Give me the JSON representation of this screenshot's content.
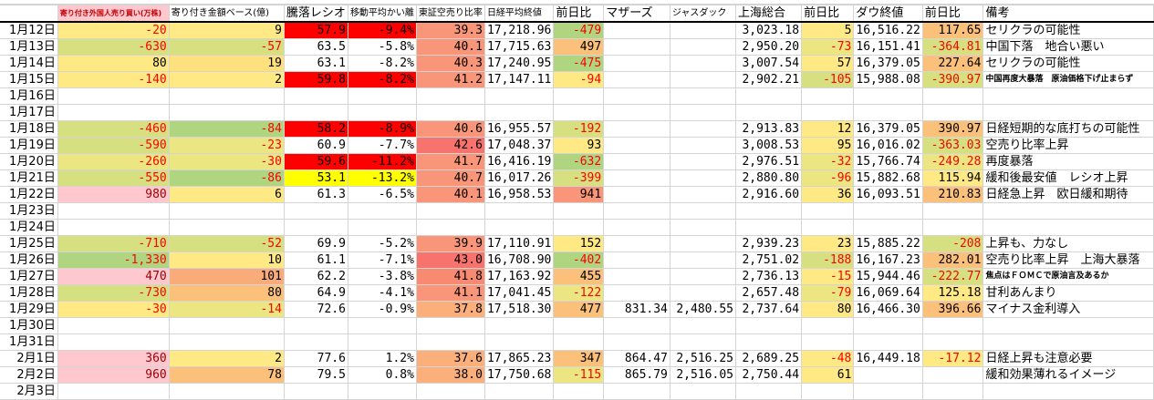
{
  "palette": {
    "Y": "#ffe984",
    "Y2": "#ffe07f",
    "LY": "#ebe582",
    "LG": "#d6e081",
    "G": "#b0d580",
    "P": "#ffc7ce",
    "O": "#fbc07a",
    "O2": "#f9ab7a",
    "R": "#ff0000",
    "BY": "#ffff00",
    "S": "#f9967a",
    "S2": "#f88a72",
    "DS": "#f8736d",
    "LS": "#fbb07b",
    "": "#ffffff",
    "negative_text": "#ff0000",
    "pink_text": "#9c0006"
  },
  "headers": [
    "",
    "寄り付き外国人売り買い(万株)",
    "寄り付き金額ベース(億)",
    "騰落レシオ",
    "移動平均かい離",
    "東証空売り比率",
    "日経平均終値",
    "前日比",
    "マザーズ",
    "ジャスダック",
    "上海総合",
    "前日比",
    "ダウ終値",
    "前日比",
    "備考"
  ],
  "header_colors": {
    "col1_bg": "#ffc7ce",
    "col1_text": "#c00000"
  },
  "rows": [
    {
      "date": "1月12日",
      "cells": [
        [
          "-20",
          "Y"
        ],
        [
          "9",
          "Y"
        ],
        [
          "57.9",
          "R"
        ],
        [
          "-9.4%",
          "R"
        ],
        [
          "39.3",
          "S"
        ],
        [
          "17,218.96",
          ""
        ],
        [
          "-479",
          "G"
        ],
        [
          "",
          ""
        ],
        [
          "",
          ""
        ],
        [
          "3,023.18",
          ""
        ],
        [
          "5",
          "Y"
        ],
        [
          "16,516.22",
          ""
        ],
        [
          "117.65",
          "O"
        ]
      ],
      "note": "セリクラの可能性"
    },
    {
      "date": "1月13日",
      "cells": [
        [
          "-630",
          "LG"
        ],
        [
          "-57",
          "LG"
        ],
        [
          "63.5",
          ""
        ],
        [
          "-5.8%",
          ""
        ],
        [
          "40.1",
          "S"
        ],
        [
          "17,715.63",
          ""
        ],
        [
          "497",
          "O"
        ],
        [
          "",
          ""
        ],
        [
          "",
          ""
        ],
        [
          "2,950.20",
          ""
        ],
        [
          "-73",
          "LY"
        ],
        [
          "16,151.41",
          ""
        ],
        [
          "-364.81",
          "LG"
        ]
      ],
      "note": "中国下落　地合い悪い"
    },
    {
      "date": "1月14日",
      "cells": [
        [
          "80",
          "Y"
        ],
        [
          "19",
          "Y2"
        ],
        [
          "63.1",
          ""
        ],
        [
          "-8.2%",
          ""
        ],
        [
          "40.3",
          "S"
        ],
        [
          "17,240.95",
          ""
        ],
        [
          "-475",
          "G"
        ],
        [
          "",
          ""
        ],
        [
          "",
          ""
        ],
        [
          "3,007.54",
          ""
        ],
        [
          "57",
          "Y"
        ],
        [
          "16,379.05",
          ""
        ],
        [
          "227.64",
          "O"
        ]
      ],
      "note": "セリクラの可能性"
    },
    {
      "date": "1月15日",
      "cells": [
        [
          "-140",
          "Y"
        ],
        [
          "2",
          "Y"
        ],
        [
          "59.8",
          "R"
        ],
        [
          "-8.2%",
          "R"
        ],
        [
          "41.2",
          "S"
        ],
        [
          "17,147.11",
          ""
        ],
        [
          "-94",
          "Y"
        ],
        [
          "",
          ""
        ],
        [
          "",
          ""
        ],
        [
          "2,902.21",
          ""
        ],
        [
          "-105",
          "LG"
        ],
        [
          "15,988.08",
          ""
        ],
        [
          "-390.97",
          "LG"
        ]
      ],
      "note": "中国再度大暴落　原油価格下げ止まらず",
      "note_small": true
    },
    {
      "date": "1月16日",
      "cells": [],
      "note": ""
    },
    {
      "date": "1月17日",
      "cells": [],
      "note": ""
    },
    {
      "date": "1月18日",
      "cells": [
        [
          "-460",
          "LG"
        ],
        [
          "-84",
          "G"
        ],
        [
          "58.2",
          "R"
        ],
        [
          "-8.9%",
          "R"
        ],
        [
          "40.6",
          "S"
        ],
        [
          "16,955.57",
          ""
        ],
        [
          "-192",
          "LG"
        ],
        [
          "",
          ""
        ],
        [
          "",
          ""
        ],
        [
          "2,913.83",
          ""
        ],
        [
          "12",
          "Y"
        ],
        [
          "16,379.05",
          ""
        ],
        [
          "390.97",
          "O"
        ]
      ],
      "note": "日経短期的な底打ちの可能性"
    },
    {
      "date": "1月19日",
      "cells": [
        [
          "-590",
          "LG"
        ],
        [
          "-23",
          "LY"
        ],
        [
          "60.9",
          ""
        ],
        [
          "-7.7%",
          ""
        ],
        [
          "42.6",
          "DS"
        ],
        [
          "17,048.37",
          ""
        ],
        [
          "93",
          "Y"
        ],
        [
          "",
          ""
        ],
        [
          "",
          ""
        ],
        [
          "3,008.53",
          ""
        ],
        [
          "95",
          "Y"
        ],
        [
          "16,016.02",
          ""
        ],
        [
          "-363.03",
          "LG"
        ]
      ],
      "note": "空売り比率上昇"
    },
    {
      "date": "1月20日",
      "cells": [
        [
          "-260",
          "LY"
        ],
        [
          "-30",
          "LY"
        ],
        [
          "59.6",
          "R"
        ],
        [
          "-11.2%",
          "R"
        ],
        [
          "41.7",
          "S"
        ],
        [
          "16,416.19",
          ""
        ],
        [
          "-632",
          "G"
        ],
        [
          "",
          ""
        ],
        [
          "",
          ""
        ],
        [
          "2,976.51",
          ""
        ],
        [
          "-32",
          "LY"
        ],
        [
          "15,766.74",
          ""
        ],
        [
          "-249.28",
          "LY"
        ]
      ],
      "note": "再度暴落"
    },
    {
      "date": "1月21日",
      "cells": [
        [
          "-550",
          "LG"
        ],
        [
          "-86",
          "G"
        ],
        [
          "53.1",
          "BY"
        ],
        [
          "-13.2%",
          "BY"
        ],
        [
          "40.7",
          "S"
        ],
        [
          "16,017.26",
          ""
        ],
        [
          "-399",
          "LG"
        ],
        [
          "",
          ""
        ],
        [
          "",
          ""
        ],
        [
          "2,880.80",
          ""
        ],
        [
          "-96",
          "LY"
        ],
        [
          "15,882.68",
          ""
        ],
        [
          "115.94",
          "Y"
        ]
      ],
      "note": "緩和後最安値　レシオ上昇"
    },
    {
      "date": "1月22日",
      "cells": [
        [
          "980",
          "P"
        ],
        [
          "6",
          "Y"
        ],
        [
          "61.3",
          ""
        ],
        [
          "-6.5%",
          ""
        ],
        [
          "40.1",
          "S"
        ],
        [
          "16,958.53",
          ""
        ],
        [
          "941",
          "S"
        ],
        [
          "",
          ""
        ],
        [
          "",
          ""
        ],
        [
          "2,916.60",
          ""
        ],
        [
          "36",
          "Y"
        ],
        [
          "16,093.51",
          ""
        ],
        [
          "210.83",
          "O"
        ]
      ],
      "note": "日経急上昇　欧日緩和期待"
    },
    {
      "date": "1月23日",
      "cells": [],
      "note": ""
    },
    {
      "date": "1月24日",
      "cells": [],
      "note": ""
    },
    {
      "date": "1月25日",
      "cells": [
        [
          "-710",
          "LG"
        ],
        [
          "-52",
          "LG"
        ],
        [
          "69.9",
          ""
        ],
        [
          "-5.2%",
          ""
        ],
        [
          "39.9",
          "S"
        ],
        [
          "17,110.91",
          ""
        ],
        [
          "152",
          "Y"
        ],
        [
          "",
          ""
        ],
        [
          "",
          ""
        ],
        [
          "2,939.23",
          ""
        ],
        [
          "23",
          "Y"
        ],
        [
          "15,885.22",
          ""
        ],
        [
          "-208",
          "LG"
        ]
      ],
      "note": "上昇も、力なし"
    },
    {
      "date": "1月26日",
      "cells": [
        [
          "-1,330",
          "G"
        ],
        [
          "10",
          "Y"
        ],
        [
          "61.1",
          ""
        ],
        [
          "-7.1%",
          ""
        ],
        [
          "43.0",
          "DS"
        ],
        [
          "16,708.90",
          ""
        ],
        [
          "-402",
          "G"
        ],
        [
          "",
          ""
        ],
        [
          "",
          ""
        ],
        [
          "2,751.02",
          ""
        ],
        [
          "-188",
          "LG"
        ],
        [
          "16,167.23",
          ""
        ],
        [
          "282.01",
          "O"
        ]
      ],
      "note": "空売り比率上昇　上海大暴落"
    },
    {
      "date": "1月27日",
      "cells": [
        [
          "470",
          "P"
        ],
        [
          "101",
          "O2"
        ],
        [
          "62.2",
          ""
        ],
        [
          "-3.8%",
          ""
        ],
        [
          "41.8",
          "S2"
        ],
        [
          "17,163.92",
          ""
        ],
        [
          "455",
          "O"
        ],
        [
          "",
          ""
        ],
        [
          "",
          ""
        ],
        [
          "2,736.13",
          ""
        ],
        [
          "-15",
          "Y"
        ],
        [
          "15,944.46",
          ""
        ],
        [
          "-222.77",
          "LG"
        ]
      ],
      "note": "焦点はＦＯＭＣで原油言及あるか",
      "note_small": true
    },
    {
      "date": "1月28日",
      "cells": [
        [
          "-730",
          "LG"
        ],
        [
          "80",
          "O"
        ],
        [
          "64.9",
          ""
        ],
        [
          "-4.1%",
          ""
        ],
        [
          "41.1",
          "S"
        ],
        [
          "17,041.45",
          ""
        ],
        [
          "-122",
          "LY"
        ],
        [
          "",
          ""
        ],
        [
          "",
          ""
        ],
        [
          "2,657.48",
          ""
        ],
        [
          "-79",
          "LY"
        ],
        [
          "16,069.64",
          ""
        ],
        [
          "125.18",
          "Y"
        ]
      ],
      "note": "甘利あんまり"
    },
    {
      "date": "1月29日",
      "cells": [
        [
          "-30",
          "Y"
        ],
        [
          "-14",
          "LY"
        ],
        [
          "72.6",
          ""
        ],
        [
          "-0.9%",
          ""
        ],
        [
          "37.8",
          "LS"
        ],
        [
          "17,518.30",
          ""
        ],
        [
          "477",
          "O"
        ],
        [
          "831.34",
          ""
        ],
        [
          "2,480.55",
          ""
        ],
        [
          "2,737.64",
          ""
        ],
        [
          "80",
          "Y"
        ],
        [
          "16,466.30",
          ""
        ],
        [
          "396.66",
          "O"
        ]
      ],
      "note": "マイナス金利導入"
    },
    {
      "date": "1月30日",
      "cells": [],
      "note": ""
    },
    {
      "date": "1月31日",
      "cells": [],
      "note": ""
    },
    {
      "date": "2月1日",
      "cells": [
        [
          "360",
          "P"
        ],
        [
          "2",
          "Y"
        ],
        [
          "77.6",
          ""
        ],
        [
          "1.2%",
          ""
        ],
        [
          "37.6",
          "LS"
        ],
        [
          "17,865.23",
          ""
        ],
        [
          "347",
          "O"
        ],
        [
          "864.47",
          ""
        ],
        [
          "2,516.25",
          ""
        ],
        [
          "2,689.25",
          ""
        ],
        [
          "-48",
          "Y"
        ],
        [
          "16,449.18",
          ""
        ],
        [
          "-17.12",
          "Y"
        ]
      ],
      "note": "日経上昇も注意必要"
    },
    {
      "date": "2月2日",
      "cells": [
        [
          "960",
          "P"
        ],
        [
          "78",
          "O"
        ],
        [
          "79.5",
          ""
        ],
        [
          "0.8%",
          ""
        ],
        [
          "38.0",
          "LS"
        ],
        [
          "17,750.68",
          ""
        ],
        [
          "-115",
          "LY"
        ],
        [
          "865.79",
          ""
        ],
        [
          "2,516.05",
          ""
        ],
        [
          "2,750.44",
          ""
        ],
        [
          "61",
          "Y"
        ],
        [
          "",
          ""
        ],
        [
          "",
          ""
        ]
      ],
      "note": "緩和効果薄れるイメージ"
    },
    {
      "date": "2月3日",
      "cells": [],
      "note": ""
    }
  ]
}
